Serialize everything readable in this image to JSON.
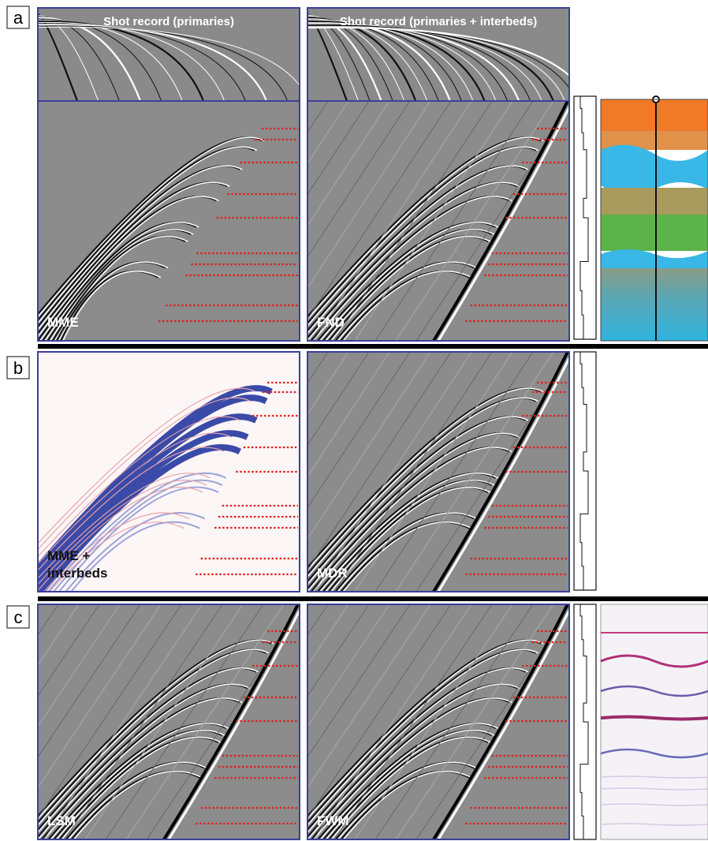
{
  "rows": [
    {
      "label": "a",
      "panels": [
        {
          "title": "Shot record (primaries)",
          "label": [
            "MME"
          ]
        },
        {
          "title": "Shot record (primaries + interbeds)",
          "label": [
            "FND"
          ]
        }
      ]
    },
    {
      "label": "b",
      "panels": [
        {
          "label": [
            "MME +",
            "interbeds"
          ]
        },
        {
          "label": [
            "MDR"
          ]
        }
      ]
    },
    {
      "label": "c",
      "panels": [
        {
          "label": [
            "LSM"
          ]
        },
        {
          "label": [
            "FWM"
          ]
        }
      ]
    }
  ]
}
